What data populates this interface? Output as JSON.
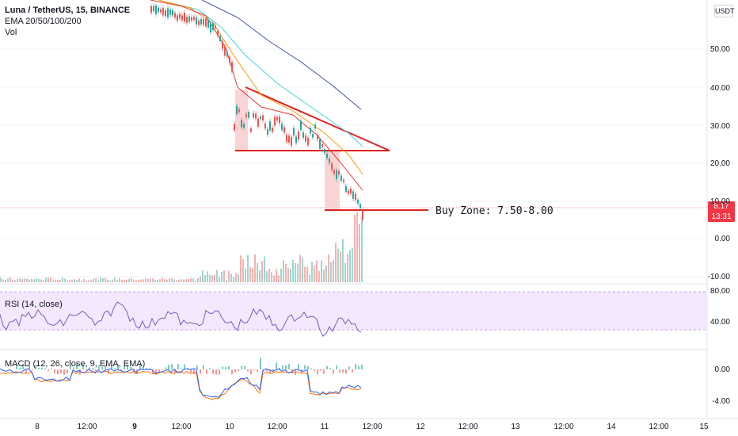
{
  "header": {
    "symbol": "Luna / TetherUS, 15, BINANCE",
    "ema": "EMA 20/50/100/200",
    "vol": "Vol"
  },
  "currency": "USDT",
  "price_badge": {
    "price": "8.17",
    "timer": "13:31"
  },
  "annotation": "Buy Zone: 7.50-8.00",
  "rsi": {
    "label": "RSI (14, close)",
    "levels": [
      "80.00",
      "40.00"
    ]
  },
  "macd": {
    "label": "MACD (12, 26, close, 9, EMA, EMA)",
    "levels": [
      "0.00",
      "-4.00"
    ]
  },
  "price_axis": [
    "50.00",
    "40.00",
    "30.00",
    "20.00",
    "10.00",
    "0.00",
    "-10.00"
  ],
  "time_axis": [
    {
      "label": "8",
      "bold": false
    },
    {
      "label": "12:00",
      "bold": false
    },
    {
      "label": "9",
      "bold": true
    },
    {
      "label": "12:00",
      "bold": false
    },
    {
      "label": "10",
      "bold": false
    },
    {
      "label": "12:00",
      "bold": false
    },
    {
      "label": "11",
      "bold": false
    },
    {
      "label": "12:00",
      "bold": false
    },
    {
      "label": "12",
      "bold": false
    },
    {
      "label": "12:00",
      "bold": false
    },
    {
      "label": "13",
      "bold": false
    },
    {
      "label": "12:00",
      "bold": false
    },
    {
      "label": "14",
      "bold": false
    },
    {
      "label": "12:00",
      "bold": false
    },
    {
      "label": "15",
      "bold": false
    }
  ],
  "colors": {
    "candle_down": "#ef5350",
    "candle_up": "#26a69a",
    "ema20": "#e53935",
    "ema50": "#ff9800",
    "ema100": "#4dd0e1",
    "ema200": "#3f51b5",
    "drawing": "#e02020",
    "rsi_line": "#7e57c2",
    "rsi_band": "#f3e8fd",
    "macd_line": "#2962ff",
    "signal_line": "#ff6d00"
  }
}
